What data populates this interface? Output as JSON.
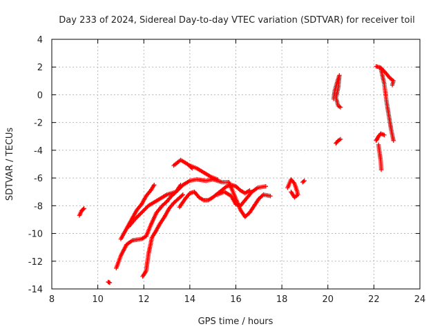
{
  "chart_data": {
    "type": "scatter",
    "title": "Day 233 of 2024, Sidereal Day-to-day VTEC variation (SDTVAR) for receiver toil",
    "xlabel": "GPS time / hours",
    "ylabel": "SDTVAR / TECUs",
    "xlim": [
      8,
      24
    ],
    "ylim": [
      -14,
      4
    ],
    "xticks": [
      8,
      10,
      12,
      14,
      16,
      18,
      20,
      22,
      24
    ],
    "yticks": [
      -14,
      -12,
      -10,
      -8,
      -6,
      -4,
      -2,
      0,
      2,
      4
    ],
    "grid": true,
    "marker": "plus",
    "series": [
      {
        "name": "SDTVAR",
        "color": "#ff0000",
        "tracks": [
          [
            [
              9.2,
              -8.7
            ],
            [
              9.3,
              -8.35
            ],
            [
              9.4,
              -8.2
            ]
          ],
          [
            [
              10.45,
              -13.5
            ],
            [
              10.52,
              -13.55
            ]
          ],
          [
            [
              10.8,
              -12.5
            ],
            [
              11.0,
              -11.6
            ],
            [
              11.25,
              -10.8
            ],
            [
              11.5,
              -10.5
            ],
            [
              11.9,
              -10.4
            ],
            [
              12.1,
              -10.2
            ],
            [
              12.3,
              -9.4
            ],
            [
              12.55,
              -8.5
            ],
            [
              12.8,
              -8.0
            ],
            [
              13.0,
              -7.7
            ],
            [
              13.2,
              -7.3
            ],
            [
              13.4,
              -7.0
            ],
            [
              13.6,
              -6.5
            ]
          ],
          [
            [
              11.0,
              -10.4
            ],
            [
              11.3,
              -9.5
            ],
            [
              11.5,
              -8.9
            ],
            [
              11.7,
              -8.3
            ],
            [
              11.9,
              -7.9
            ],
            [
              12.1,
              -7.3
            ],
            [
              12.3,
              -6.9
            ],
            [
              12.45,
              -6.5
            ]
          ],
          [
            [
              11.35,
              -9.5
            ],
            [
              11.6,
              -9.0
            ],
            [
              11.9,
              -8.5
            ],
            [
              12.2,
              -8.0
            ],
            [
              12.5,
              -7.7
            ],
            [
              12.8,
              -7.4
            ],
            [
              13.0,
              -7.2
            ],
            [
              13.4,
              -7.0
            ],
            [
              13.7,
              -6.5
            ],
            [
              14.0,
              -6.2
            ],
            [
              14.3,
              -6.1
            ],
            [
              14.7,
              -6.2
            ],
            [
              15.0,
              -6.1
            ],
            [
              15.4,
              -6.3
            ],
            [
              15.65,
              -6.3
            ]
          ],
          [
            [
              11.95,
              -13.1
            ],
            [
              12.1,
              -12.7
            ],
            [
              12.2,
              -11.5
            ],
            [
              12.35,
              -10.3
            ],
            [
              12.5,
              -9.9
            ],
            [
              12.7,
              -9.3
            ],
            [
              12.9,
              -8.8
            ],
            [
              13.1,
              -8.2
            ],
            [
              13.3,
              -7.8
            ],
            [
              13.5,
              -7.5
            ],
            [
              13.7,
              -7.2
            ]
          ],
          [
            [
              13.3,
              -5.1
            ],
            [
              13.6,
              -4.7
            ],
            [
              13.9,
              -5.0
            ],
            [
              14.1,
              -5.3
            ],
            [
              14.0,
              -5.1
            ],
            [
              14.3,
              -5.3
            ],
            [
              14.6,
              -5.6
            ],
            [
              14.9,
              -5.9
            ],
            [
              15.2,
              -6.1
            ]
          ],
          [
            [
              13.55,
              -8.1
            ],
            [
              13.8,
              -7.5
            ],
            [
              14.0,
              -7.1
            ],
            [
              14.2,
              -7.0
            ],
            [
              14.4,
              -7.4
            ],
            [
              14.6,
              -7.6
            ],
            [
              14.8,
              -7.6
            ],
            [
              15.0,
              -7.4
            ],
            [
              15.3,
              -7.0
            ],
            [
              15.6,
              -6.6
            ],
            [
              15.8,
              -6.5
            ],
            [
              16.0,
              -6.6
            ],
            [
              16.2,
              -6.9
            ],
            [
              16.4,
              -7.1
            ],
            [
              16.6,
              -6.9
            ]
          ],
          [
            [
              15.7,
              -6.3
            ],
            [
              15.85,
              -6.9
            ],
            [
              16.0,
              -7.5
            ],
            [
              16.2,
              -8.3
            ],
            [
              16.4,
              -8.8
            ],
            [
              16.6,
              -8.5
            ],
            [
              16.8,
              -8.0
            ],
            [
              17.0,
              -7.5
            ],
            [
              17.2,
              -7.2
            ],
            [
              17.5,
              -7.3
            ]
          ],
          [
            [
              15.2,
              -7.2
            ],
            [
              15.5,
              -7.0
            ],
            [
              15.8,
              -7.3
            ],
            [
              16.0,
              -7.9
            ],
            [
              16.2,
              -8.0
            ],
            [
              16.4,
              -7.6
            ],
            [
              16.7,
              -7.0
            ],
            [
              16.95,
              -6.7
            ],
            [
              17.3,
              -6.6
            ]
          ],
          [
            [
              18.25,
              -6.7
            ],
            [
              18.4,
              -6.1
            ],
            [
              18.55,
              -6.4
            ],
            [
              18.65,
              -6.9
            ],
            [
              18.7,
              -7.2
            ],
            [
              18.55,
              -7.4
            ],
            [
              18.4,
              -7.0
            ]
          ],
          [
            [
              18.9,
              -6.3
            ],
            [
              18.98,
              -6.2
            ]
          ],
          [
            [
              20.25,
              -0.3
            ],
            [
              20.3,
              0.3
            ],
            [
              20.4,
              0.9
            ],
            [
              20.5,
              1.4
            ],
            [
              20.45,
              0.5
            ],
            [
              20.35,
              -0.2
            ],
            [
              20.45,
              -0.8
            ],
            [
              20.55,
              -0.9
            ]
          ],
          [
            [
              20.35,
              -3.5
            ],
            [
              20.45,
              -3.3
            ],
            [
              20.55,
              -3.2
            ]
          ],
          [
            [
              22.1,
              2.05
            ],
            [
              22.3,
              1.95
            ],
            [
              22.5,
              1.6
            ],
            [
              22.7,
              1.2
            ],
            [
              22.85,
              1.0
            ],
            [
              22.8,
              0.7
            ]
          ],
          [
            [
              22.3,
              1.9
            ],
            [
              22.45,
              0.8
            ],
            [
              22.55,
              -0.5
            ],
            [
              22.65,
              -1.5
            ],
            [
              22.75,
              -2.5
            ],
            [
              22.85,
              -3.3
            ]
          ],
          [
            [
              22.1,
              -3.3
            ],
            [
              22.2,
              -3.0
            ],
            [
              22.3,
              -2.8
            ],
            [
              22.45,
              -2.9
            ]
          ],
          [
            [
              22.2,
              -3.6
            ],
            [
              22.25,
              -4.2
            ],
            [
              22.3,
              -4.8
            ],
            [
              22.32,
              -5.4
            ]
          ]
        ]
      }
    ]
  }
}
